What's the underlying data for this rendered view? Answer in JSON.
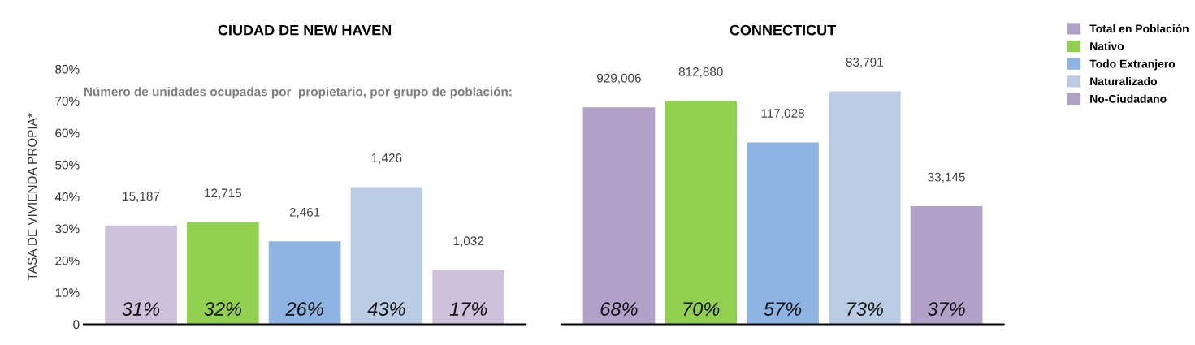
{
  "chart_data": [
    {
      "type": "bar",
      "title": "CIUDAD DE NEW HAVEN",
      "ylabel": "TASA DE VIVIENDA PROPIA*",
      "categories": [
        null,
        null,
        null,
        null,
        null
      ],
      "values": [
        31,
        32,
        26,
        43,
        17
      ],
      "colors": [
        "#ccc0da",
        "#92d050",
        "#8eb4e3",
        "#b9cce4",
        "#ccc0da"
      ],
      "value_labels": [
        "31%",
        "32%",
        "26%",
        "43%",
        "17%"
      ],
      "ylim": [
        0,
        80
      ],
      "yticks": [
        {
          "value": 0,
          "label": "0"
        },
        {
          "value": 10,
          "label": "10%"
        },
        {
          "value": 20,
          "label": "20%"
        },
        {
          "value": 30,
          "label": "30%"
        },
        {
          "value": 40,
          "label": "40%"
        },
        {
          "value": 50,
          "label": "50%"
        },
        {
          "value": 60,
          "label": "60%"
        },
        {
          "value": 70,
          "label": "70%"
        },
        {
          "value": 80,
          "label": "80%"
        }
      ],
      "tick_labels": "y",
      "grid": false,
      "annotations": [
        "Número de unidades ocupadas por  propietario, por grupo de población:",
        "15,187",
        "12,715",
        "2,461",
        "1,426",
        "1,032"
      ]
    },
    {
      "type": "bar",
      "title": "CONNECTICUT",
      "categories": [
        null,
        null,
        null,
        null,
        null
      ],
      "stacked": true,
      "series": [
        {
          "name": "Total en Población",
          "color": "#b1a0c7",
          "values": [
            68,
            null,
            null,
            null,
            null
          ],
          "value_labels": [
            "68%",
            null,
            null,
            null,
            null
          ]
        },
        {
          "name": "Nativo",
          "color": "#92d050",
          "values": [
            null,
            70,
            null,
            null,
            null
          ],
          "value_labels": [
            null,
            "70%",
            null,
            null,
            null
          ]
        },
        {
          "name": "Todo Extranjero",
          "color": "#8eb4e3",
          "values": [
            null,
            null,
            57,
            null,
            null
          ],
          "value_labels": [
            null,
            null,
            "57%",
            null,
            null
          ]
        },
        {
          "name": "Naturalizado",
          "color": "#b9cce4",
          "values": [
            null,
            null,
            null,
            73,
            null
          ],
          "value_labels": [
            null,
            null,
            null,
            "73%",
            null
          ]
        },
        {
          "name": "No-Ciudadano",
          "color": "#b1a0c7",
          "values": [
            null,
            null,
            null,
            null,
            37
          ],
          "value_labels": [
            null,
            null,
            null,
            null,
            "37%"
          ]
        }
      ],
      "tick_labels": false,
      "grid": false,
      "legend": "right",
      "annotations": [
        "929,006",
        "812,880",
        "117,028",
        "83,791",
        "33,145"
      ]
    }
  ]
}
